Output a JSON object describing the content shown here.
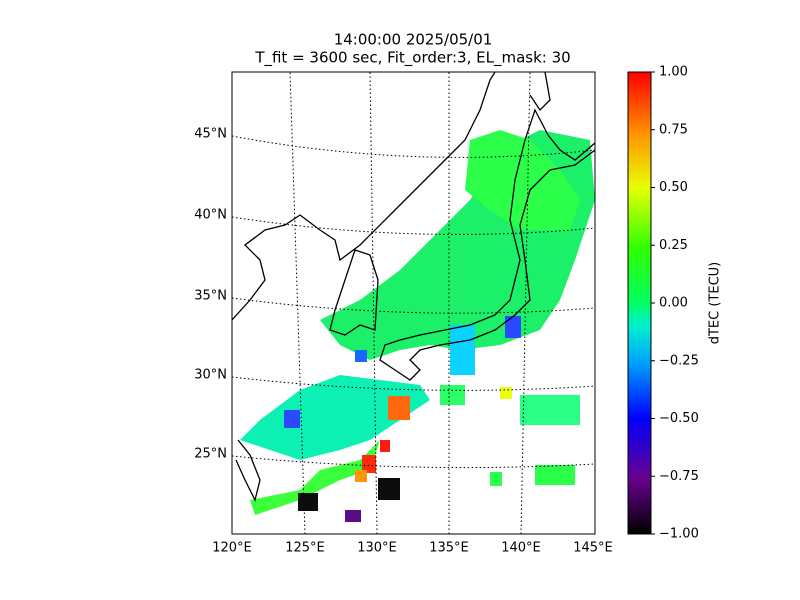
{
  "map": {
    "title": "14:00:00 2025/05/01",
    "subtitle": "T_fit = 3600 sec, Fit_order:3, EL_mask: 30",
    "lon_labels": [
      "120°E",
      "125°E",
      "130°E",
      "135°E",
      "140°E",
      "145°E"
    ],
    "lat_labels": [
      "45°N",
      "40°N",
      "35°N",
      "30°N",
      "25°N"
    ],
    "colorbar": {
      "label": "dTEC (TECU)",
      "clim": [
        -1,
        1
      ],
      "ticks": [
        {
          "value": 1,
          "label": "1.00"
        },
        {
          "value": 0.75,
          "label": "0.75"
        },
        {
          "value": 0.5,
          "label": "0.50"
        },
        {
          "value": 0.25,
          "label": "0.25"
        },
        {
          "value": 0,
          "label": "0.00"
        },
        {
          "value": -0.25,
          "label": "−0.25"
        },
        {
          "value": -0.5,
          "label": "−0.50"
        },
        {
          "value": -0.75,
          "label": "−0.75"
        },
        {
          "value": -1,
          "label": "−1.00"
        }
      ]
    }
  }
}
